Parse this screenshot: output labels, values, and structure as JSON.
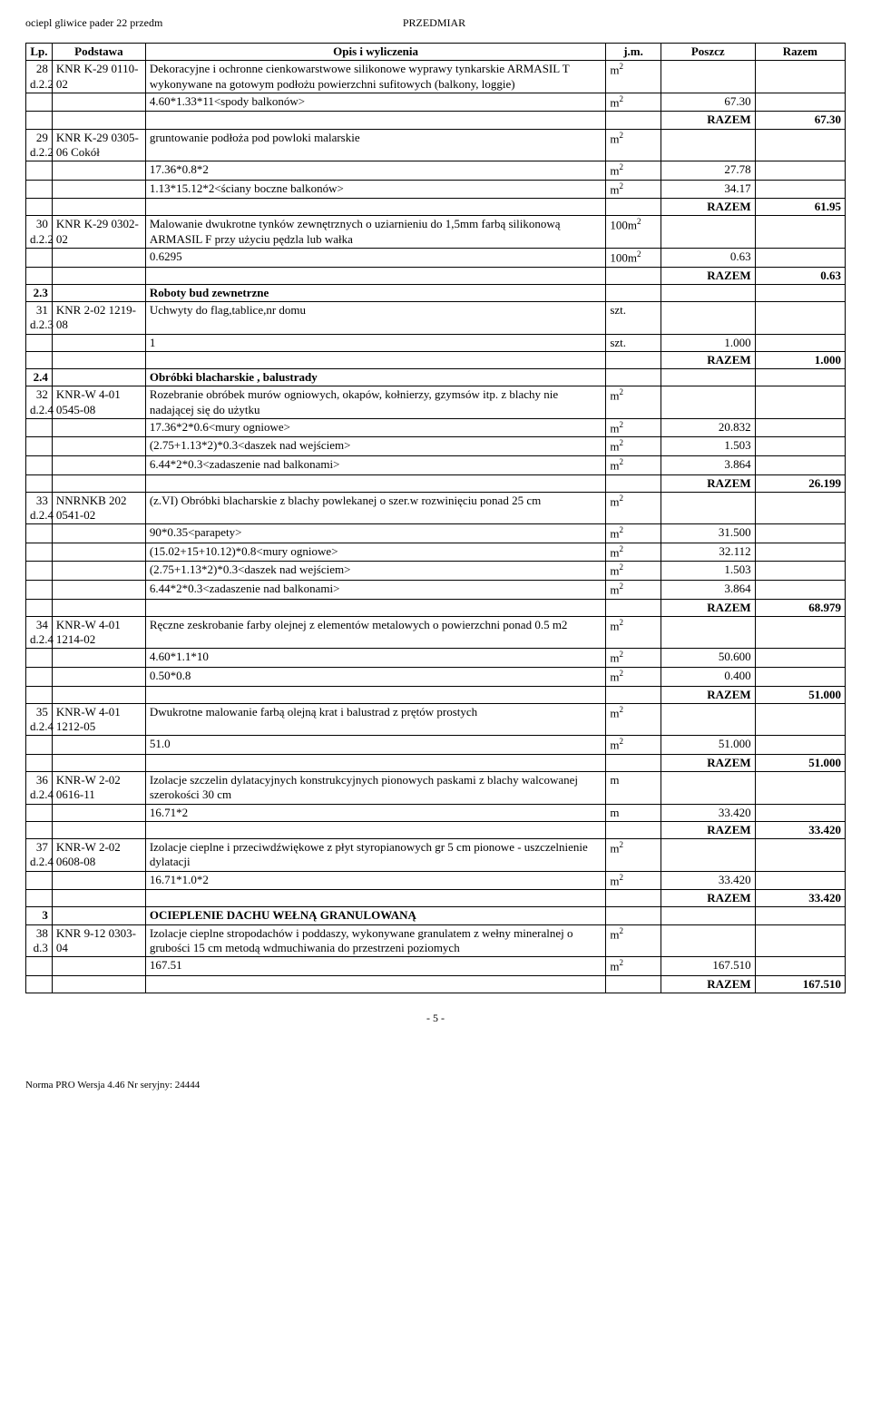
{
  "header": {
    "left": "ociepl gliwice pader 22 przedm",
    "right": "PRZEDMIAR"
  },
  "thead": {
    "lp": "Lp.",
    "podstawa": "Podstawa",
    "opis": "Opis i wyliczenia",
    "jm": "j.m.",
    "poszcz": "Poszcz",
    "razem": "Razem"
  },
  "rows": [
    {
      "lp": "28",
      "pod": "KNR K-29 0110-02",
      "podpre": "d.2.2",
      "opis": "Dekoracyjne i ochronne cienkowarstwowe silikonowe wyprawy tynkarskie ARMASIL T wykonywane na gotowym podłożu powierzchni sufitowych (balkony, loggie)",
      "jm": "m2"
    },
    {
      "opis": "4.60*1.33*11<spody balkonów>",
      "jm": "m2",
      "poszcz": "67.30"
    },
    {
      "razem_label": "RAZEM",
      "razem": "67.30"
    },
    {
      "lp": "29",
      "pod": "KNR K-29 0305-06 Cokół",
      "podpre": "d.2.2",
      "opis": "gruntowanie podłoża pod powloki malarskie",
      "jm": "m2"
    },
    {
      "opis": "17.36*0.8*2",
      "jm": "m2",
      "poszcz": "27.78"
    },
    {
      "opis": "1.13*15.12*2<ściany boczne balkonów>",
      "jm": "m2",
      "poszcz": "34.17"
    },
    {
      "razem_label": "RAZEM",
      "razem": "61.95"
    },
    {
      "lp": "30",
      "pod": "KNR K-29 0302-02",
      "podpre": "d.2.2",
      "opis": "Malowanie dwukrotne tynków zewnętrznych o uziarnieniu do 1,5mm farbą silikonową ARMASIL F przy użyciu pędzla lub wałka",
      "jm": "100m2"
    },
    {
      "opis": "0.6295",
      "jm": "100m2",
      "poszcz": "0.63"
    },
    {
      "razem_label": "RAZEM",
      "razem": "0.63"
    },
    {
      "section": true,
      "lp": "2.3",
      "opis": "Roboty bud zewnetrzne"
    },
    {
      "lp": "31",
      "pod": "KNR 2-02 1219-08",
      "podpre": "d.2.3",
      "opis": "Uchwyty do flag,tablice,nr domu",
      "jm": "szt."
    },
    {
      "opis": "1",
      "jm": "szt.",
      "poszcz": "1.000"
    },
    {
      "razem_label": "RAZEM",
      "razem": "1.000"
    },
    {
      "section": true,
      "lp": "2.4",
      "opis": "Obróbki blacharskie , balustrady"
    },
    {
      "lp": "32",
      "pod": "KNR-W 4-01 0545-08",
      "podpre": "d.2.4",
      "opis": "Rozebranie obróbek murów ogniowych, okapów, kołnierzy, gzymsów itp. z blachy nie nadającej się do użytku",
      "jm": "m2"
    },
    {
      "opis": "17.36*2*0.6<mury ogniowe>",
      "jm": "m2",
      "poszcz": "20.832"
    },
    {
      "opis": "(2.75+1.13*2)*0.3<daszek nad wejściem>",
      "jm": "m2",
      "poszcz": "1.503"
    },
    {
      "opis": "6.44*2*0.3<zadaszenie nad balkonami>",
      "jm": "m2",
      "poszcz": "3.864"
    },
    {
      "razem_label": "RAZEM",
      "razem": "26.199"
    },
    {
      "lp": "33",
      "pod": "NNRNKB 202 0541-02",
      "podpre": "d.2.4",
      "opis": "(z.VI) Obróbki blacharskie z blachy powlekanej o szer.w rozwinięciu ponad 25 cm",
      "jm": "m2"
    },
    {
      "opis": "90*0.35<parapety>",
      "jm": "m2",
      "poszcz": "31.500"
    },
    {
      "opis": "(15.02+15+10.12)*0.8<mury ogniowe>",
      "jm": "m2",
      "poszcz": "32.112"
    },
    {
      "opis": "(2.75+1.13*2)*0.3<daszek nad wejściem>",
      "jm": "m2",
      "poszcz": "1.503"
    },
    {
      "opis": "6.44*2*0.3<zadaszenie nad balkonami>",
      "jm": "m2",
      "poszcz": "3.864"
    },
    {
      "razem_label": "RAZEM",
      "razem": "68.979"
    },
    {
      "lp": "34",
      "pod": "KNR-W 4-01 1214-02",
      "podpre": "d.2.4",
      "opis": "Ręczne zeskrobanie farby olejnej z elementów metalowych o powierzchni ponad 0.5 m2",
      "jm": "m2"
    },
    {
      "opis": "4.60*1.1*10",
      "jm": "m2",
      "poszcz": "50.600"
    },
    {
      "opis": "0.50*0.8",
      "jm": "m2",
      "poszcz": "0.400"
    },
    {
      "razem_label": "RAZEM",
      "razem": "51.000"
    },
    {
      "lp": "35",
      "pod": "KNR-W 4-01 1212-05",
      "podpre": "d.2.4",
      "opis": "Dwukrotne malowanie farbą olejną krat i balustrad z prętów prostych",
      "jm": "m2"
    },
    {
      "opis": "51.0",
      "jm": "m2",
      "poszcz": "51.000"
    },
    {
      "razem_label": "RAZEM",
      "razem": "51.000"
    },
    {
      "lp": "36",
      "pod": "KNR-W 2-02 0616-11",
      "podpre": "d.2.4",
      "opis": "Izolacje szczelin dylatacyjnych konstrukcyjnych pionowych paskami z blachy walcowanej szerokości 30 cm",
      "jm": "m"
    },
    {
      "opis": "16.71*2",
      "jm": "m",
      "poszcz": "33.420"
    },
    {
      "razem_label": "RAZEM",
      "razem": "33.420"
    },
    {
      "lp": "37",
      "pod": "KNR-W 2-02 0608-08",
      "podpre": "d.2.4",
      "opis": "Izolacje cieplne i przeciwdźwiękowe z płyt styropianowych gr 5 cm pionowe - uszczelnienie dylatacji",
      "jm": "m2"
    },
    {
      "opis": "16.71*1.0*2",
      "jm": "m2",
      "poszcz": "33.420"
    },
    {
      "razem_label": "RAZEM",
      "razem": "33.420"
    },
    {
      "section": true,
      "lp": "3",
      "opis": "OCIEPLENIE DACHU WEŁNĄ GRANULOWANĄ"
    },
    {
      "lp": "38",
      "pod": "KNR 9-12 0303-04",
      "podpre": "d.3",
      "opis": "Izolacje cieplne stropodachów i poddaszy, wykonywane granulatem z wełny mineralnej  o grubości 15 cm metodą wdmuchiwania do przestrzeni poziomych",
      "jm": "m2"
    },
    {
      "opis": "167.51",
      "jm": "m2",
      "poszcz": "167.510"
    },
    {
      "razem_label": "RAZEM",
      "razem": "167.510"
    }
  ],
  "pagenum": "- 5 -",
  "footer": "Norma PRO Wersja 4.46 Nr seryjny: 24444"
}
